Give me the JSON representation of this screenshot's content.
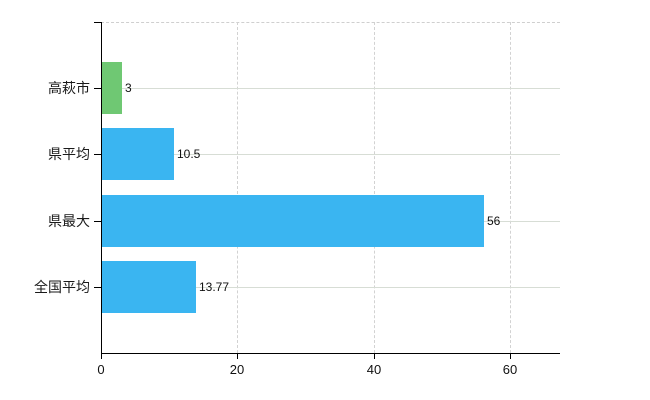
{
  "chart_data": {
    "type": "bar",
    "orientation": "horizontal",
    "title": "",
    "xlabel": "",
    "ylabel": "",
    "categories": [
      "高萩市",
      "県平均",
      "県最大",
      "全国平均"
    ],
    "values": [
      3,
      10.5,
      56,
      13.77
    ],
    "value_labels": [
      "3",
      "10.5",
      "56",
      "13.77"
    ],
    "bar_colors": [
      "#6fc873",
      "#3ab5f1",
      "#3ab5f1",
      "#3ab5f1"
    ],
    "x_tick_labels": [
      "0",
      "20",
      "40",
      "60"
    ],
    "x_tick_values": [
      0,
      20,
      40,
      60
    ],
    "xlim": [
      0,
      67.3
    ],
    "grid": "on",
    "legend": "none",
    "colors": {
      "highlight_bar": "#6fc873",
      "default_bar": "#3ab5f1",
      "category_grid_line": "#d7ddd5",
      "dashed_grid_line": "#d2d2d2",
      "top_border_dashed": "#cfcfcf",
      "axis": "#000000",
      "text": "#1a1a1a",
      "background": "#ffffff"
    }
  }
}
